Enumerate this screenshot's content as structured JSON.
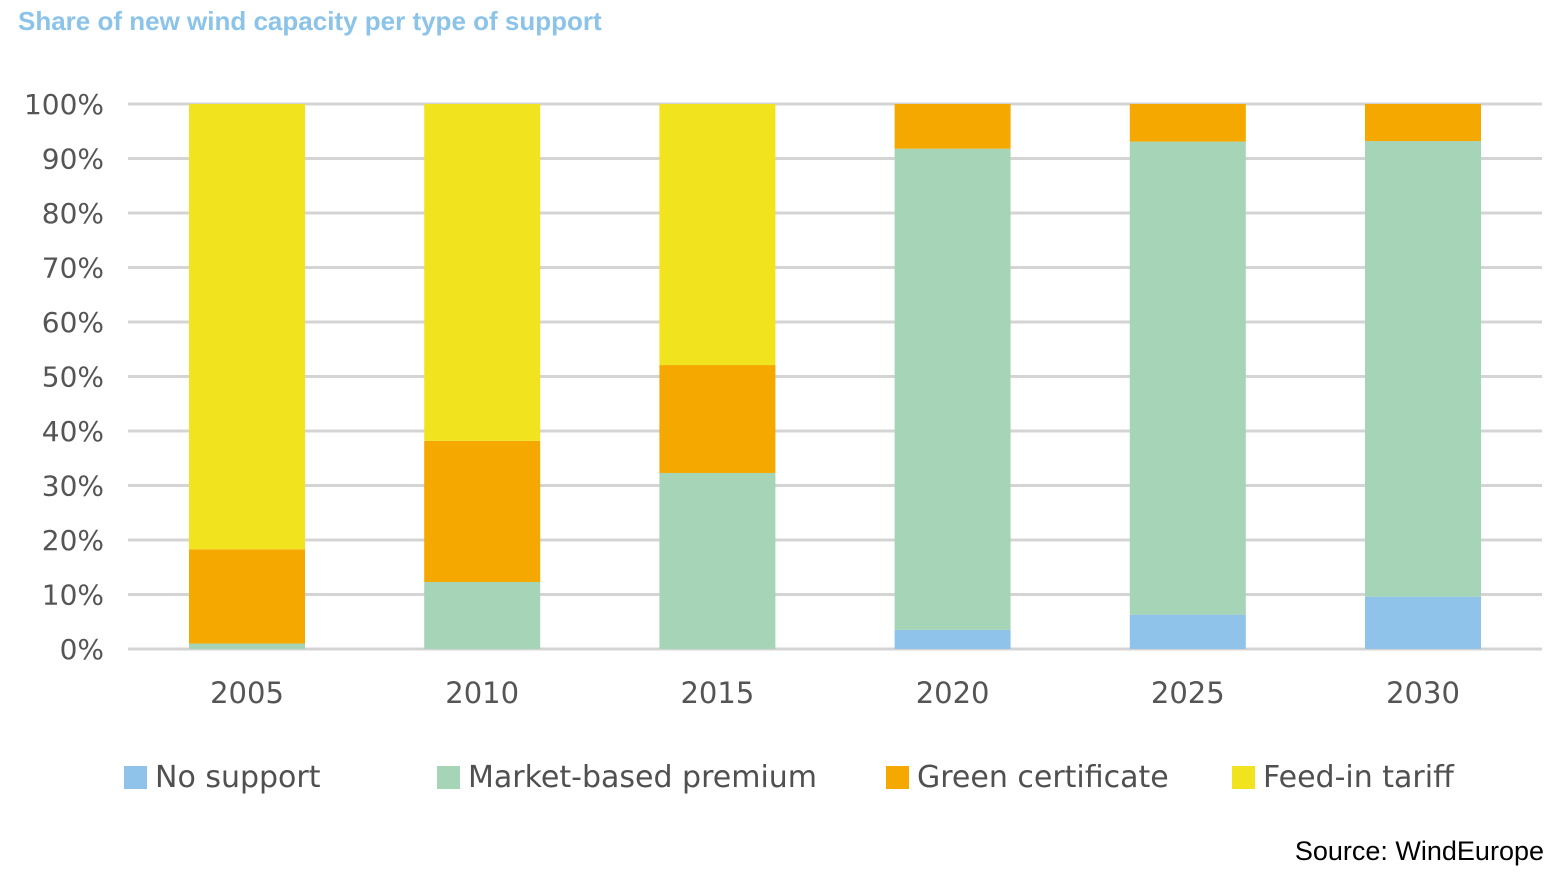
{
  "colors": {
    "grid": "#d4d4d4",
    "axis_text": "#555555",
    "title": "#8cc3e8"
  },
  "chart_data": {
    "type": "bar",
    "stacked": true,
    "title": "Share of new wind capacity per type of support",
    "xlabel": "",
    "ylabel": "",
    "categories": [
      "2005",
      "2010",
      "2015",
      "2020",
      "2025",
      "2030"
    ],
    "ylim": [
      0,
      100
    ],
    "yticks": [
      0,
      10,
      20,
      30,
      40,
      50,
      60,
      70,
      80,
      90,
      100
    ],
    "ytick_labels": [
      "0%",
      "10%",
      "20%",
      "30%",
      "40%",
      "50%",
      "60%",
      "70%",
      "80%",
      "90%",
      "100%"
    ],
    "grid": true,
    "legend_position": "bottom",
    "series": [
      {
        "name": "No support",
        "color": "#8fc3ea",
        "values": [
          0,
          0,
          0,
          3.5,
          6.3,
          9.6
        ]
      },
      {
        "name": "Market-based premium",
        "color": "#a6d4b7",
        "values": [
          1,
          12.3,
          32.3,
          88.3,
          86.8,
          83.6
        ]
      },
      {
        "name": "Green certificate",
        "color": "#f5a800",
        "values": [
          17.3,
          25.9,
          19.8,
          8.2,
          6.9,
          6.8
        ]
      },
      {
        "name": "Feed-in tariff",
        "color": "#f1e41e",
        "values": [
          81.7,
          61.8,
          47.9,
          0,
          0,
          0
        ]
      }
    ]
  },
  "source": "Source: WindEurope"
}
